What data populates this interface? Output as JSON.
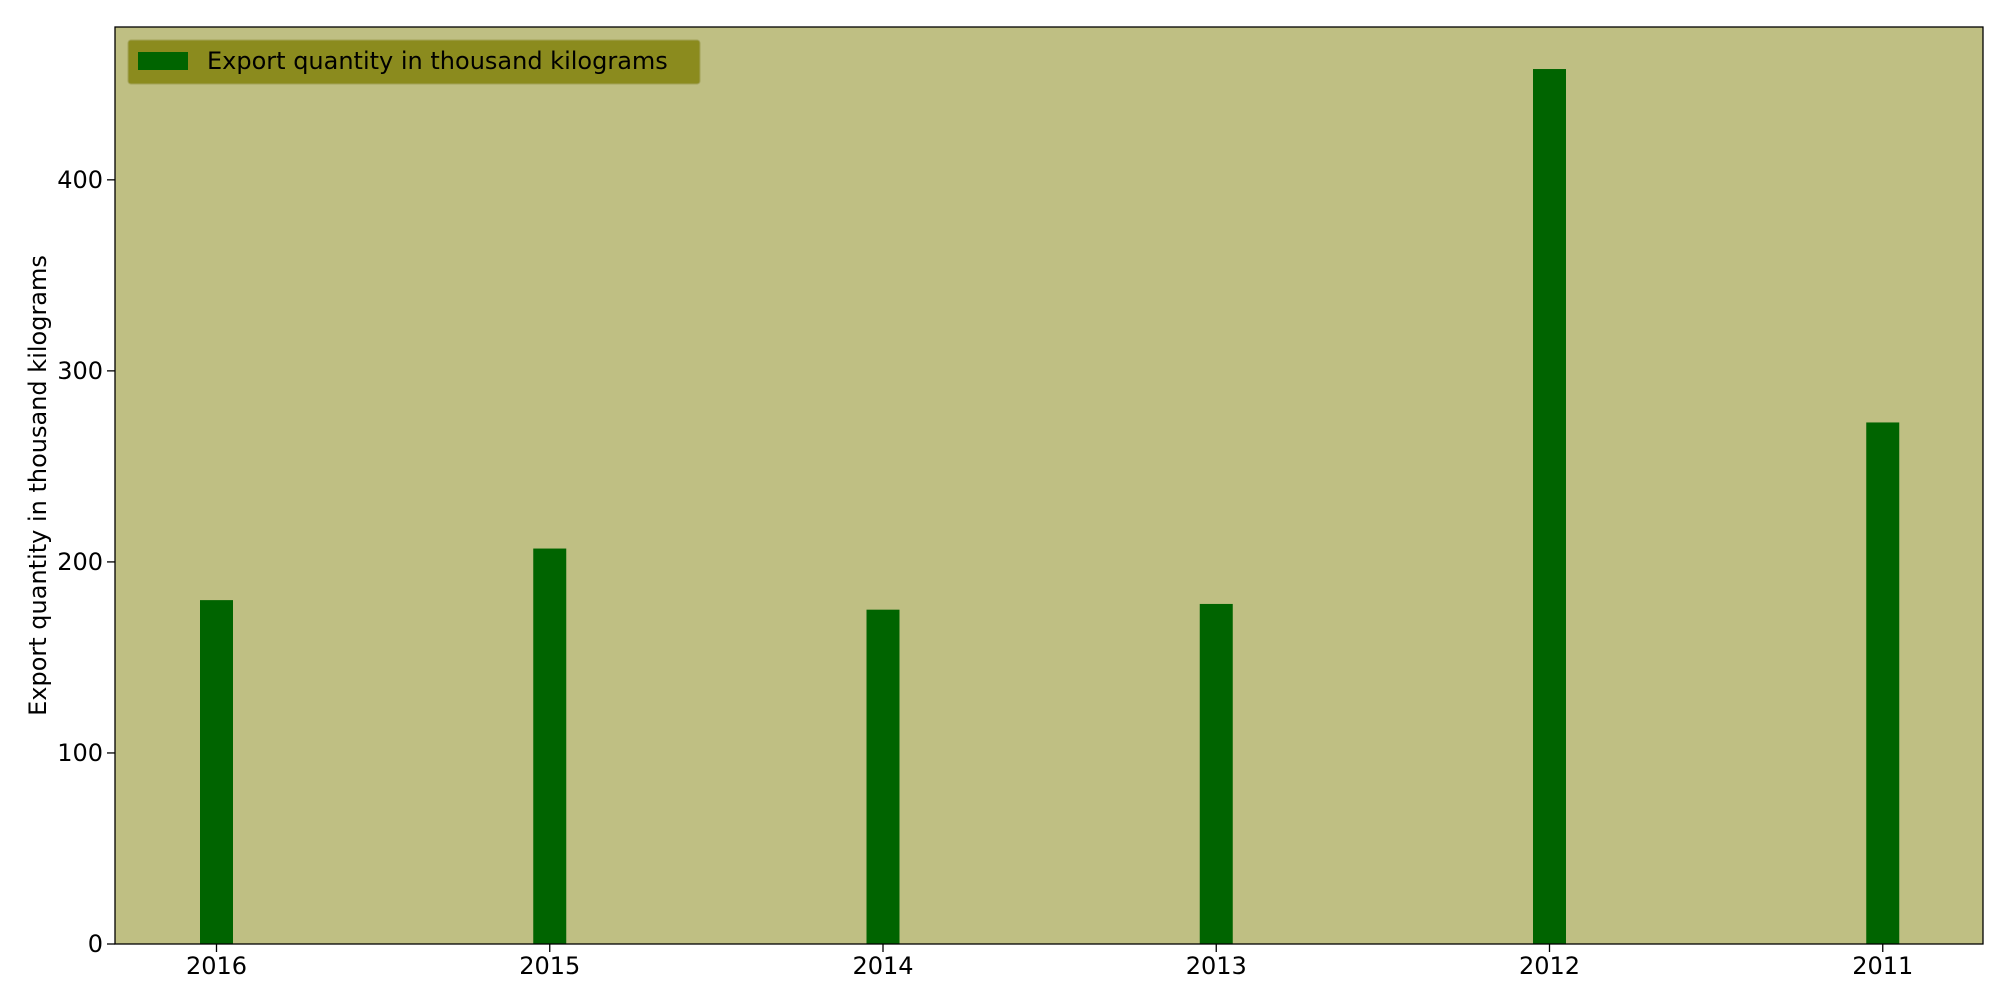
{
  "chart_data": {
    "type": "bar",
    "categories": [
      "2016",
      "2015",
      "2014",
      "2013",
      "2012",
      "2011"
    ],
    "series": [
      {
        "name": "Export quantity in thousand kilograms",
        "values": [
          180,
          207,
          175,
          178,
          458,
          273
        ],
        "color": "#006400"
      }
    ],
    "title": "",
    "xlabel": "",
    "ylabel": "Export quantity in thousand kilograms",
    "ylim": [
      0,
      480
    ],
    "yticks": [
      0,
      100,
      200,
      300,
      400
    ],
    "grid": false,
    "legend_position": "top-left",
    "plot_background": "#bfbf83",
    "legend_background": "#8b8b1e"
  }
}
